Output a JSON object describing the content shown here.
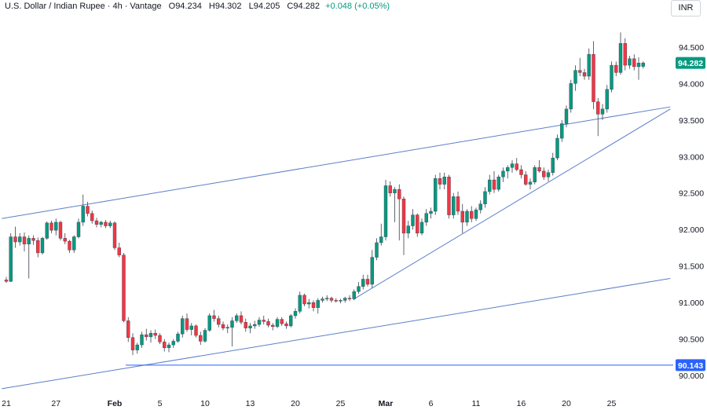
{
  "header": {
    "symbol": "U.S. Dollar / Indian Rupee",
    "interval": "4h",
    "broker": "Vantage",
    "o_label": "O",
    "o_value": "94.234",
    "h_label": "H",
    "h_value": "94.302",
    "l_label": "L",
    "l_value": "94.205",
    "c_label": "C",
    "c_value": "94.282",
    "change": "+0.048 (+0.05%)"
  },
  "currency_button": "INR",
  "colors": {
    "up": "#089981",
    "down": "#f23645",
    "trendline": "#5b7fc7",
    "support": "#2962ff",
    "price_tag": "#089981",
    "support_tag": "#2962ff",
    "axis_text": "#131722"
  },
  "chart_data": {
    "type": "candlestick",
    "y_axis": {
      "ylim": [
        89.98,
        94.95
      ],
      "ticks": [
        "94.500",
        "94.000",
        "93.500",
        "93.000",
        "92.500",
        "92.000",
        "91.500",
        "91.000",
        "90.500",
        "90.000"
      ]
    },
    "x_axis": {
      "ticks": [
        {
          "label": "21",
          "bar": 0,
          "bold": false
        },
        {
          "label": "27",
          "bar": 11,
          "bold": false
        },
        {
          "label": "Feb",
          "bar": 24,
          "bold": true
        },
        {
          "label": "5",
          "bar": 34,
          "bold": false
        },
        {
          "label": "10",
          "bar": 44,
          "bold": false
        },
        {
          "label": "13",
          "bar": 54,
          "bold": false
        },
        {
          "label": "20",
          "bar": 64,
          "bold": false
        },
        {
          "label": "25",
          "bar": 74,
          "bold": false
        },
        {
          "label": "Mar",
          "bar": 84,
          "bold": true
        },
        {
          "label": "6",
          "bar": 94,
          "bold": false
        },
        {
          "label": "11",
          "bar": 104,
          "bold": false
        },
        {
          "label": "16",
          "bar": 114,
          "bold": false
        },
        {
          "label": "20",
          "bar": 124,
          "bold": false
        },
        {
          "label": "25",
          "bar": 134,
          "bold": false
        }
      ]
    },
    "last_price": "94.282",
    "support_level": "90.143",
    "trendlines": [
      {
        "name": "upper-channel",
        "start": {
          "bar": -1,
          "price": 92.15
        },
        "end": {
          "bar": 147,
          "price": 93.68
        }
      },
      {
        "name": "lower-channel",
        "start": {
          "bar": -1,
          "price": 89.82
        },
        "end": {
          "bar": 147,
          "price": 91.33
        }
      },
      {
        "name": "rising-support",
        "start": {
          "bar": 77,
          "price": 91.05
        },
        "end": {
          "bar": 147,
          "price": 93.65
        }
      }
    ],
    "ohlc": [
      [
        91.31,
        91.35,
        91.27,
        91.29
      ],
      [
        91.29,
        91.95,
        91.28,
        91.9
      ],
      [
        91.9,
        92.04,
        91.75,
        91.83
      ],
      [
        91.83,
        91.95,
        91.78,
        91.9
      ],
      [
        91.9,
        91.96,
        91.7,
        91.8
      ],
      [
        91.8,
        91.92,
        91.33,
        91.88
      ],
      [
        91.88,
        91.92,
        91.79,
        91.85
      ],
      [
        91.85,
        91.89,
        91.62,
        91.68
      ],
      [
        91.68,
        91.9,
        91.66,
        91.88
      ],
      [
        91.88,
        92.11,
        91.86,
        92.09
      ],
      [
        92.09,
        92.12,
        91.95,
        91.99
      ],
      [
        91.99,
        92.15,
        91.92,
        92.1
      ],
      [
        92.1,
        92.12,
        91.85,
        91.88
      ],
      [
        91.88,
        91.95,
        91.8,
        91.84
      ],
      [
        91.84,
        91.86,
        91.68,
        91.72
      ],
      [
        91.72,
        91.92,
        91.68,
        91.9
      ],
      [
        91.9,
        92.15,
        91.88,
        92.1
      ],
      [
        92.1,
        92.48,
        92.05,
        92.32
      ],
      [
        92.32,
        92.38,
        92.18,
        92.22
      ],
      [
        92.22,
        92.26,
        92.08,
        92.12
      ],
      [
        92.12,
        92.16,
        92.03,
        92.07
      ],
      [
        92.07,
        92.12,
        92.03,
        92.1
      ],
      [
        92.1,
        92.13,
        92.02,
        92.05
      ],
      [
        92.05,
        92.12,
        92.02,
        92.09
      ],
      [
        92.09,
        92.11,
        91.72,
        91.75
      ],
      [
        91.75,
        91.82,
        91.62,
        91.65
      ],
      [
        91.65,
        91.68,
        90.73,
        90.75
      ],
      [
        90.75,
        90.8,
        90.46,
        90.52
      ],
      [
        90.52,
        90.58,
        90.28,
        90.35
      ],
      [
        90.35,
        90.45,
        90.3,
        90.42
      ],
      [
        90.42,
        90.6,
        90.38,
        90.56
      ],
      [
        90.56,
        90.64,
        90.48,
        90.53
      ],
      [
        90.53,
        90.62,
        90.45,
        90.58
      ],
      [
        90.58,
        90.63,
        90.5,
        90.55
      ],
      [
        90.55,
        90.58,
        90.43,
        90.46
      ],
      [
        90.46,
        90.5,
        90.33,
        90.38
      ],
      [
        90.38,
        90.45,
        90.32,
        90.42
      ],
      [
        90.42,
        90.5,
        90.38,
        90.47
      ],
      [
        90.47,
        90.6,
        90.45,
        90.57
      ],
      [
        90.57,
        90.82,
        90.52,
        90.78
      ],
      [
        90.78,
        90.85,
        90.6,
        90.63
      ],
      [
        90.63,
        90.72,
        90.55,
        90.68
      ],
      [
        90.68,
        90.7,
        90.52,
        90.55
      ],
      [
        90.55,
        90.6,
        90.42,
        90.47
      ],
      [
        90.47,
        90.65,
        90.45,
        90.62
      ],
      [
        90.62,
        90.85,
        90.6,
        90.82
      ],
      [
        90.82,
        90.9,
        90.74,
        90.78
      ],
      [
        90.78,
        90.82,
        90.66,
        90.7
      ],
      [
        90.7,
        90.74,
        90.62,
        90.65
      ],
      [
        90.65,
        90.7,
        90.58,
        90.66
      ],
      [
        90.66,
        90.8,
        90.4,
        90.75
      ],
      [
        90.75,
        90.85,
        90.72,
        90.82
      ],
      [
        90.82,
        90.88,
        90.7,
        90.73
      ],
      [
        90.73,
        90.78,
        90.6,
        90.65
      ],
      [
        90.65,
        90.72,
        90.58,
        90.68
      ],
      [
        90.68,
        90.75,
        90.64,
        90.7
      ],
      [
        90.7,
        90.8,
        90.67,
        90.76
      ],
      [
        90.76,
        90.82,
        90.7,
        90.74
      ],
      [
        90.74,
        90.78,
        90.66,
        90.69
      ],
      [
        90.69,
        90.72,
        90.62,
        90.67
      ],
      [
        90.67,
        90.8,
        90.65,
        90.77
      ],
      [
        90.77,
        90.8,
        90.68,
        90.71
      ],
      [
        90.71,
        90.74,
        90.64,
        90.68
      ],
      [
        90.68,
        90.84,
        90.66,
        90.82
      ],
      [
        90.82,
        90.92,
        90.78,
        90.88
      ],
      [
        90.88,
        91.15,
        90.85,
        91.1
      ],
      [
        91.1,
        91.12,
        90.95,
        90.98
      ],
      [
        90.98,
        91.05,
        90.92,
        91.0
      ],
      [
        91.0,
        91.03,
        90.88,
        90.93
      ],
      [
        90.93,
        91.06,
        90.85,
        91.03
      ],
      [
        91.03,
        91.08,
        91.0,
        91.05
      ],
      [
        91.05,
        91.1,
        91.02,
        91.06
      ],
      [
        91.06,
        91.08,
        91.0,
        91.03
      ],
      [
        91.03,
        91.06,
        91.0,
        91.02
      ],
      [
        91.02,
        91.05,
        90.99,
        91.03
      ],
      [
        91.03,
        91.08,
        91.0,
        91.06
      ],
      [
        91.06,
        91.1,
        91.02,
        91.05
      ],
      [
        91.05,
        91.18,
        91.03,
        91.15
      ],
      [
        91.15,
        91.28,
        91.12,
        91.22
      ],
      [
        91.22,
        91.38,
        91.18,
        91.32
      ],
      [
        91.32,
        91.38,
        91.22,
        91.25
      ],
      [
        91.25,
        91.72,
        91.2,
        91.62
      ],
      [
        91.62,
        91.88,
        91.58,
        91.82
      ],
      [
        91.82,
        92.08,
        91.78,
        91.9
      ],
      [
        91.9,
        92.68,
        91.85,
        92.6
      ],
      [
        92.6,
        92.66,
        92.45,
        92.5
      ],
      [
        92.5,
        92.58,
        92.1,
        92.55
      ],
      [
        92.55,
        92.62,
        91.85,
        92.42
      ],
      [
        92.42,
        92.45,
        91.65,
        91.95
      ],
      [
        91.95,
        92.12,
        91.88,
        92.05
      ],
      [
        92.05,
        92.28,
        92.0,
        92.2
      ],
      [
        92.2,
        92.22,
        91.9,
        91.95
      ],
      [
        91.95,
        92.15,
        91.92,
        92.1
      ],
      [
        92.1,
        92.28,
        92.05,
        92.22
      ],
      [
        92.22,
        92.3,
        92.15,
        92.25
      ],
      [
        92.25,
        92.75,
        92.2,
        92.7
      ],
      [
        92.7,
        92.78,
        92.55,
        92.62
      ],
      [
        92.62,
        92.78,
        92.55,
        92.72
      ],
      [
        92.72,
        92.75,
        92.15,
        92.2
      ],
      [
        92.2,
        92.5,
        92.15,
        92.45
      ],
      [
        92.45,
        92.52,
        92.2,
        92.25
      ],
      [
        92.25,
        92.35,
        91.95,
        92.1
      ],
      [
        92.1,
        92.28,
        92.05,
        92.25
      ],
      [
        92.25,
        92.32,
        92.1,
        92.15
      ],
      [
        92.15,
        92.3,
        92.12,
        92.27
      ],
      [
        92.27,
        92.4,
        92.22,
        92.35
      ],
      [
        92.35,
        92.58,
        92.3,
        92.52
      ],
      [
        92.52,
        92.75,
        92.48,
        92.68
      ],
      [
        92.68,
        92.8,
        92.5,
        92.55
      ],
      [
        92.55,
        92.75,
        92.52,
        92.72
      ],
      [
        92.72,
        92.85,
        92.65,
        92.8
      ],
      [
        92.8,
        92.88,
        92.7,
        92.85
      ],
      [
        92.85,
        92.95,
        92.78,
        92.9
      ],
      [
        92.9,
        92.98,
        92.8,
        92.82
      ],
      [
        92.82,
        92.88,
        92.7,
        92.75
      ],
      [
        92.75,
        92.8,
        92.6,
        92.62
      ],
      [
        92.62,
        92.7,
        92.55,
        92.65
      ],
      [
        92.65,
        92.88,
        92.62,
        92.85
      ],
      [
        92.85,
        92.95,
        92.78,
        92.8
      ],
      [
        92.8,
        92.85,
        92.68,
        92.72
      ],
      [
        92.72,
        92.82,
        92.66,
        92.78
      ],
      [
        92.78,
        93.05,
        92.74,
        92.98
      ],
      [
        92.98,
        93.3,
        92.95,
        93.25
      ],
      [
        93.25,
        93.5,
        93.2,
        93.45
      ],
      [
        93.45,
        93.7,
        93.4,
        93.65
      ],
      [
        93.65,
        94.05,
        93.6,
        94.0
      ],
      [
        94.0,
        94.25,
        93.9,
        94.18
      ],
      [
        94.18,
        94.35,
        94.1,
        94.15
      ],
      [
        94.15,
        94.2,
        94.05,
        94.1
      ],
      [
        94.1,
        94.48,
        94.05,
        94.4
      ],
      [
        94.4,
        94.58,
        93.65,
        93.75
      ],
      [
        93.75,
        93.8,
        93.28,
        93.58
      ],
      [
        93.58,
        93.72,
        93.5,
        93.65
      ],
      [
        93.65,
        93.98,
        93.6,
        93.92
      ],
      [
        93.92,
        94.3,
        93.88,
        94.25
      ],
      [
        94.25,
        94.3,
        94.1,
        94.15
      ],
      [
        94.15,
        94.7,
        94.12,
        94.55
      ],
      [
        94.55,
        94.62,
        94.18,
        94.25
      ],
      [
        94.25,
        94.38,
        94.2,
        94.34
      ],
      [
        94.34,
        94.4,
        94.18,
        94.23
      ],
      [
        94.23,
        94.36,
        94.05,
        94.28
      ],
      [
        94.234,
        94.302,
        94.205,
        94.282
      ]
    ]
  }
}
